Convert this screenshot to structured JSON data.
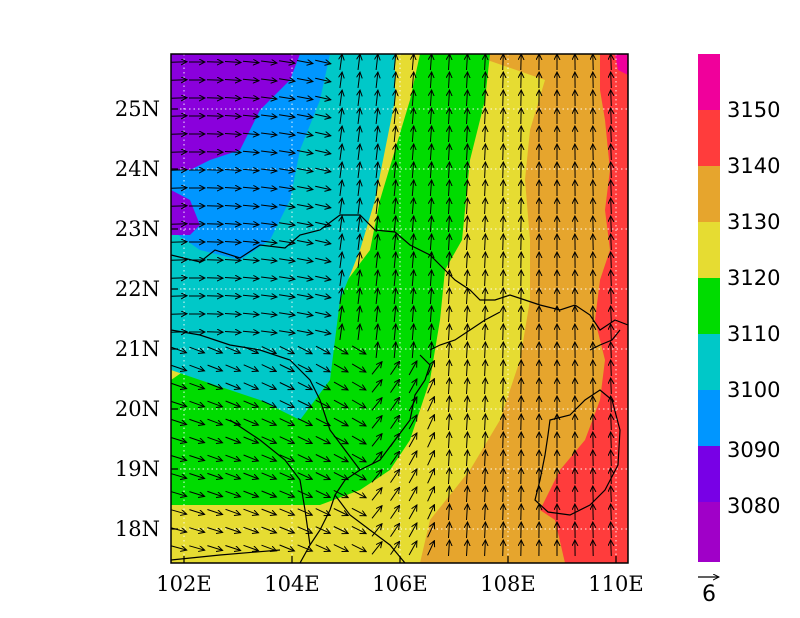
{
  "map": {
    "x_tick_labels": [
      "102E",
      "104E",
      "106E",
      "108E",
      "110E"
    ],
    "y_tick_labels": [
      "25N",
      "24N",
      "23N",
      "22N",
      "21N",
      "20N",
      "19N",
      "18N"
    ],
    "lon_range": [
      101.9,
      110.85
    ],
    "lat_range": [
      17.4,
      25.95
    ],
    "grid_lines": "dotted",
    "field_description_colors": {
      "purple": "#8a00dc",
      "violet": "#7a00e6",
      "blue": "#0096ff",
      "cyan": "#00c8c8",
      "green": "#00dc00",
      "yellow": "#e6dc32",
      "orange": "#e6a52d",
      "red": "#ff3c3c",
      "magenta": "#ff0096"
    }
  },
  "colorbar": {
    "labels": [
      "3150",
      "3140",
      "3130",
      "3120",
      "3110",
      "3100",
      "3090",
      "3080"
    ],
    "colors": [
      "#f0009b",
      "#ff3c3c",
      "#e6a52d",
      "#e6dc32",
      "#00dc00",
      "#00c8c8",
      "#0096ff",
      "#7800e6",
      "#a000c8"
    ]
  },
  "reference_vector": {
    "label": "6"
  }
}
